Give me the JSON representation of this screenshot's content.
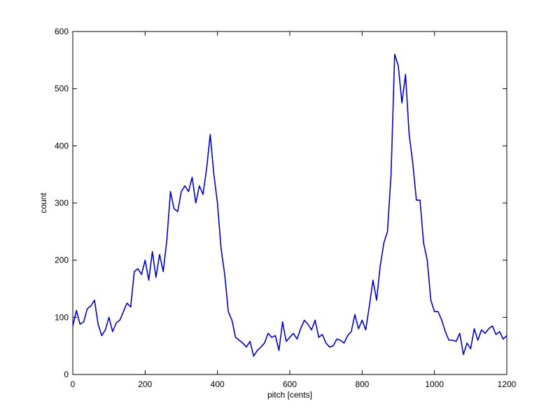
{
  "chart_data": {
    "type": "line",
    "xlabel": "pitch [cents]",
    "ylabel": "count",
    "x": [
      0,
      10,
      20,
      30,
      40,
      50,
      60,
      70,
      80,
      90,
      100,
      110,
      120,
      130,
      140,
      150,
      160,
      170,
      180,
      190,
      200,
      210,
      220,
      230,
      240,
      250,
      260,
      270,
      280,
      290,
      300,
      310,
      320,
      330,
      340,
      350,
      360,
      370,
      380,
      390,
      400,
      410,
      420,
      430,
      440,
      450,
      460,
      470,
      480,
      490,
      500,
      510,
      520,
      530,
      540,
      550,
      560,
      570,
      580,
      590,
      600,
      610,
      620,
      630,
      640,
      650,
      660,
      670,
      680,
      690,
      700,
      710,
      720,
      730,
      740,
      750,
      760,
      770,
      780,
      790,
      800,
      810,
      820,
      830,
      840,
      850,
      860,
      870,
      880,
      890,
      900,
      910,
      920,
      930,
      940,
      950,
      960,
      970,
      980,
      990,
      1000,
      1010,
      1020,
      1030,
      1040,
      1050,
      1060,
      1070,
      1080,
      1090,
      1100,
      1110,
      1120,
      1130,
      1140,
      1150,
      1160,
      1170,
      1180,
      1190,
      1200
    ],
    "series": [
      {
        "color": "#0000cc",
        "values": [
          85,
          112,
          88,
          92,
          115,
          120,
          130,
          88,
          68,
          78,
          100,
          75,
          90,
          95,
          110,
          125,
          118,
          180,
          185,
          175,
          200,
          165,
          215,
          170,
          210,
          180,
          235,
          320,
          290,
          285,
          320,
          330,
          320,
          345,
          300,
          330,
          315,
          360,
          420,
          350,
          300,
          220,
          175,
          110,
          95,
          65,
          60,
          55,
          48,
          58,
          32,
          42,
          48,
          55,
          72,
          65,
          68,
          42,
          92,
          58,
          65,
          72,
          62,
          80,
          95,
          88,
          78,
          95,
          65,
          70,
          55,
          48,
          50,
          62,
          60,
          55,
          68,
          75,
          105,
          80,
          95,
          78,
          120,
          165,
          130,
          190,
          230,
          250,
          350,
          560,
          540,
          475,
          525,
          420,
          370,
          305,
          305,
          230,
          200,
          130,
          110,
          110,
          95,
          75,
          60,
          60,
          58,
          72,
          35,
          55,
          45,
          80,
          60,
          78,
          72,
          80,
          85,
          70,
          75,
          62,
          68
        ]
      }
    ],
    "xlim": [
      0,
      1200
    ],
    "ylim": [
      0,
      600
    ],
    "xticks": [
      0,
      200,
      400,
      600,
      800,
      1000,
      1200
    ],
    "yticks": [
      0,
      100,
      200,
      300,
      400,
      500,
      600
    ]
  }
}
